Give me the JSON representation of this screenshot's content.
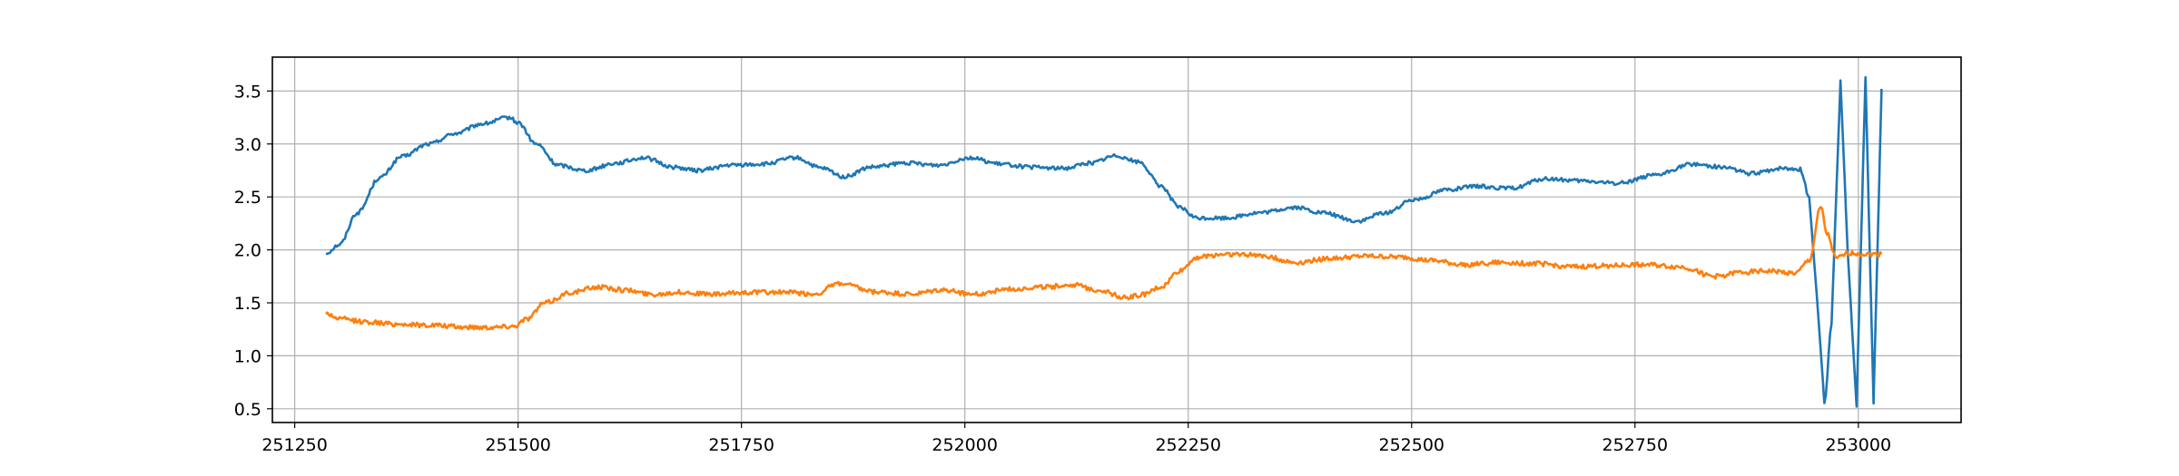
{
  "chart_data": {
    "type": "line",
    "title": "",
    "xlabel": "",
    "ylabel": "",
    "xlim": [
      251225,
      253115
    ],
    "ylim": [
      0.37,
      3.82
    ],
    "grid": true,
    "x_ticks": [
      251250,
      251500,
      251750,
      252000,
      252250,
      252500,
      252750,
      253000
    ],
    "x_tick_labels": [
      "251250",
      "251500",
      "251750",
      "252000",
      "252250",
      "252500",
      "252750",
      "253000"
    ],
    "y_ticks": [
      0.5,
      1.0,
      1.5,
      2.0,
      2.5,
      3.0,
      3.5
    ],
    "y_tick_labels": [
      "0.5",
      "1.0",
      "1.5",
      "2.0",
      "2.5",
      "3.0",
      "3.5"
    ],
    "series": [
      {
        "color": "#1f77b4",
        "noise": 0.018,
        "x": [
          251285,
          251300,
          251320,
          251345,
          251370,
          251400,
          251430,
          251460,
          251490,
          251500,
          251520,
          251545,
          251575,
          251610,
          251640,
          251675,
          251700,
          251740,
          251775,
          251810,
          251840,
          251865,
          251895,
          251935,
          251970,
          252005,
          252040,
          252075,
          252110,
          252140,
          252170,
          252195,
          252220,
          252240,
          252260,
          252290,
          252330,
          252370,
          252400,
          252440,
          252470,
          252505,
          252540,
          252575,
          252610,
          252650,
          252690,
          252730,
          252770,
          252815,
          252850,
          252880,
          252915,
          252935,
          252945,
          252955,
          252962,
          252970,
          252980,
          252988,
          252998,
          253008,
          253017,
          253026
        ],
        "y": [
          1.97,
          2.05,
          2.35,
          2.68,
          2.88,
          3.0,
          3.1,
          3.19,
          3.25,
          3.2,
          3.0,
          2.8,
          2.75,
          2.82,
          2.87,
          2.78,
          2.75,
          2.8,
          2.81,
          2.87,
          2.77,
          2.69,
          2.78,
          2.82,
          2.8,
          2.87,
          2.81,
          2.78,
          2.77,
          2.82,
          2.89,
          2.83,
          2.6,
          2.4,
          2.3,
          2.3,
          2.35,
          2.4,
          2.35,
          2.27,
          2.35,
          2.48,
          2.57,
          2.6,
          2.58,
          2.67,
          2.65,
          2.63,
          2.7,
          2.81,
          2.78,
          2.72,
          2.77,
          2.76,
          2.5,
          1.4,
          0.55,
          1.3,
          3.6,
          2.0,
          0.52,
          3.63,
          0.55,
          3.52
        ]
      },
      {
        "color": "#ff7f0e",
        "noise": 0.022,
        "x": [
          251285,
          251300,
          251330,
          251360,
          251400,
          251440,
          251470,
          251495,
          251510,
          251530,
          251560,
          251590,
          251620,
          251650,
          251680,
          251720,
          251760,
          251800,
          251830,
          251860,
          251900,
          251940,
          251975,
          252010,
          252050,
          252090,
          252120,
          252150,
          252180,
          252200,
          252220,
          252240,
          252260,
          252290,
          252330,
          252370,
          252410,
          252450,
          252490,
          252520,
          252560,
          252600,
          252640,
          252680,
          252720,
          252760,
          252800,
          252840,
          252870,
          252900,
          252930,
          252945,
          252958,
          252965,
          252975,
          252990,
          253010,
          253026
        ],
        "y": [
          1.4,
          1.35,
          1.32,
          1.3,
          1.29,
          1.27,
          1.27,
          1.28,
          1.35,
          1.5,
          1.6,
          1.65,
          1.62,
          1.58,
          1.6,
          1.58,
          1.6,
          1.6,
          1.58,
          1.68,
          1.6,
          1.58,
          1.62,
          1.58,
          1.63,
          1.65,
          1.67,
          1.62,
          1.55,
          1.58,
          1.65,
          1.8,
          1.93,
          1.96,
          1.95,
          1.88,
          1.92,
          1.94,
          1.93,
          1.9,
          1.86,
          1.88,
          1.87,
          1.84,
          1.85,
          1.86,
          1.84,
          1.75,
          1.79,
          1.8,
          1.78,
          1.9,
          2.4,
          2.15,
          1.92,
          1.97,
          1.96,
          1.96
        ]
      }
    ]
  }
}
